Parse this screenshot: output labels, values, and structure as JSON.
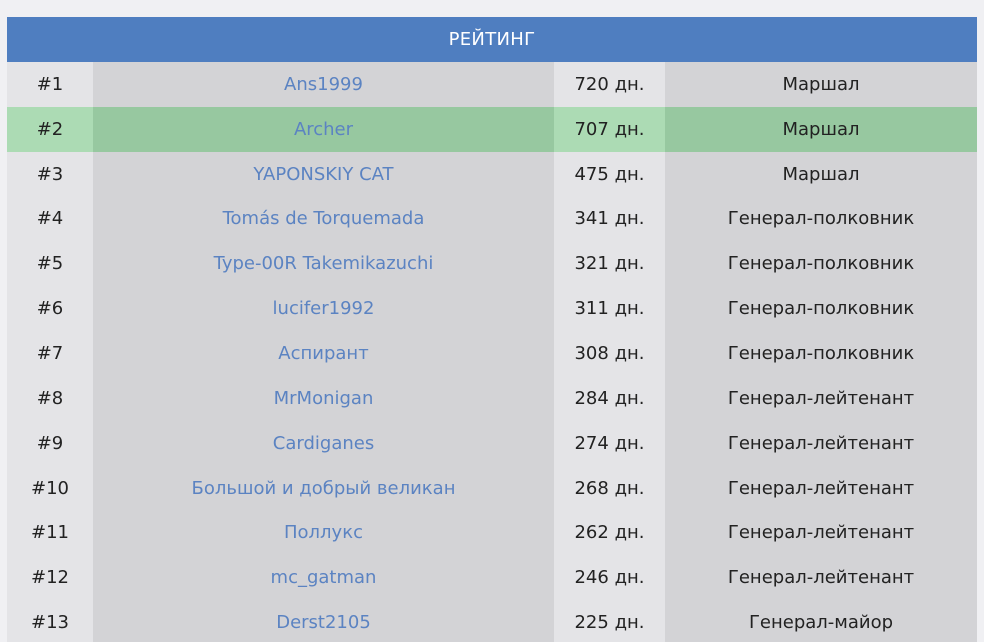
{
  "header": {
    "title": "РЕЙТИНГ"
  },
  "colors": {
    "header_bg": "#4f7ec0",
    "link": "#5b83c2",
    "highlight": "#97c8a0"
  },
  "rows": [
    {
      "rank": "#1",
      "name": "Ans1999",
      "days": "720 дн.",
      "title": "Маршал",
      "highlight": false
    },
    {
      "rank": "#2",
      "name": "Archer",
      "days": "707 дн.",
      "title": "Маршал",
      "highlight": true
    },
    {
      "rank": "#3",
      "name": "YAPONSKIY CAT",
      "days": "475 дн.",
      "title": "Маршал",
      "highlight": false
    },
    {
      "rank": "#4",
      "name": "Tomás de Torquemada",
      "days": "341 дн.",
      "title": "Генерал-полковник",
      "highlight": false
    },
    {
      "rank": "#5",
      "name": "Type-00R Takemikazuchi",
      "days": "321 дн.",
      "title": "Генерал-полковник",
      "highlight": false
    },
    {
      "rank": "#6",
      "name": "lucifer1992",
      "days": "311 дн.",
      "title": "Генерал-полковник",
      "highlight": false
    },
    {
      "rank": "#7",
      "name": "Аспирант",
      "days": "308 дн.",
      "title": "Генерал-полковник",
      "highlight": false
    },
    {
      "rank": "#8",
      "name": "MrMonigan",
      "days": "284 дн.",
      "title": "Генерал-лейтенант",
      "highlight": false
    },
    {
      "rank": "#9",
      "name": "Cardiganes",
      "days": "274 дн.",
      "title": "Генерал-лейтенант",
      "highlight": false
    },
    {
      "rank": "#10",
      "name": "Большой и добрый великан",
      "days": "268 дн.",
      "title": "Генерал-лейтенант",
      "highlight": false
    },
    {
      "rank": "#11",
      "name": "Поллукс",
      "days": "262 дн.",
      "title": "Генерал-лейтенант",
      "highlight": false
    },
    {
      "rank": "#12",
      "name": "mc_gatman",
      "days": "246 дн.",
      "title": "Генерал-лейтенант",
      "highlight": false
    },
    {
      "rank": "#13",
      "name": "Derst2105",
      "days": "225 дн.",
      "title": "Генерал-майор",
      "highlight": false
    }
  ]
}
